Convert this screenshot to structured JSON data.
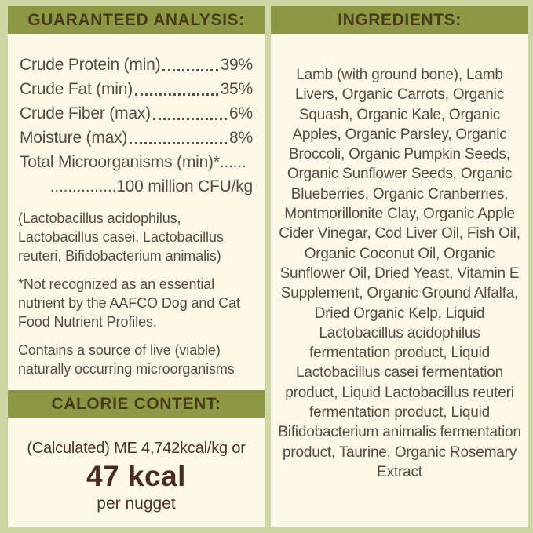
{
  "colors": {
    "background_sage": "#ccd5a3",
    "panel_cream": "#fcf9e9",
    "band_olive": "#8c9843",
    "band_text_brown": "#4a3a1d",
    "body_text": "#564c42",
    "calorie_brown": "#4b2c1f"
  },
  "left": {
    "analysis": {
      "title": "GUARANTEED ANALYSIS:",
      "rows": [
        {
          "label": "Crude Protein (min)",
          "value": "39%"
        },
        {
          "label": "Crude Fat (min)",
          "value": "35%"
        },
        {
          "label": "Crude Fiber (max)",
          "value": "6%"
        },
        {
          "label": "Moisture (max)",
          "value": "8%"
        }
      ],
      "micro_label": "Total Microorganisms (min)*......",
      "micro_value": "...............100 million CFU/kg",
      "bacteria_note": "(Lactobacillus acidophilus,\nLactobacillus casei, Lactobacillus\nreuteri, Bifidobacterium animalis)",
      "footnote": "*Not recognized as an essential\nnutrient by the AAFCO Dog and Cat\nFood Nutrient Profiles.",
      "viable_note": "Contains a source of live (viable)\nnaturally occurring microorganisms"
    },
    "calorie": {
      "title": "CALORIE CONTENT:",
      "line1": "(Calculated) ME 4,742kcal/kg or",
      "big_value": "47 kcal",
      "line3": "per nugget"
    }
  },
  "right": {
    "title": "INGREDIENTS:",
    "text": "Lamb (with ground bone), Lamb Livers, Organic Carrots, Organic Squash, Organic Kale, Organic Apples, Organic Parsley, Organic Broccoli, Organic Pumpkin Seeds, Organic Sunflower Seeds, Organic Blueberries, Organic Cranberries, Montmorillonite Clay, Organic Apple Cider Vinegar, Cod Liver Oil, Fish Oil, Organic Coconut Oil, Organic Sunflower Oil, Dried Yeast, Vitamin E Supplement, Organic Ground Alfalfa, Dried Organic Kelp, Liquid Lactobacillus acidophilus fermentation product, Liquid Lactobacillus casei fermentation product, Liquid Lactobacillus reuteri fermentation product, Liquid Bifidobacterium animalis fermentation product, Taurine, Organic Rosemary Extract"
  }
}
